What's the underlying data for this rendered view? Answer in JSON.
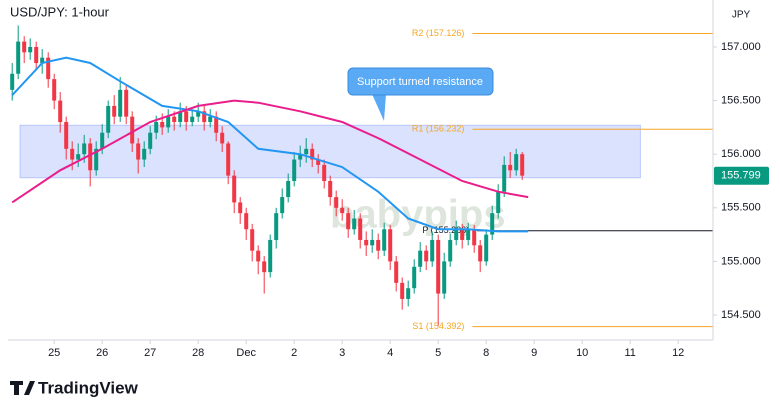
{
  "chart_data": {
    "type": "candlestick",
    "title": "USD/JPY: 1-hour",
    "currency": "JPY",
    "watermark": "babypips",
    "annotation": "Support turned resistance",
    "up_color": "#089981",
    "down_color": "#f23645",
    "x": [
      -7,
      -6,
      -5,
      -4,
      -3,
      -2,
      -1,
      0,
      1,
      2,
      3,
      4,
      5,
      6,
      7,
      8,
      9,
      10,
      11,
      12,
      13,
      14,
      15,
      16,
      17,
      18,
      19,
      20,
      21,
      22,
      23,
      24,
      25,
      26,
      27,
      28,
      29,
      30,
      31,
      32,
      33,
      34,
      35,
      36,
      37,
      38,
      39,
      40,
      41,
      42,
      43,
      44,
      45,
      46,
      47,
      48,
      49,
      50,
      51,
      52,
      53,
      54,
      55,
      56,
      57,
      58,
      59,
      60,
      61,
      62,
      63,
      64,
      65,
      66,
      67,
      68,
      69,
      70,
      71,
      72,
      73,
      74,
      75,
      76,
      77,
      78
    ],
    "open": [
      156.6,
      156.75,
      157.05,
      156.95,
      157.0,
      156.85,
      156.9,
      156.7,
      156.5,
      156.3,
      156.05,
      155.95,
      156.0,
      156.1,
      155.85,
      156.05,
      156.2,
      156.45,
      156.35,
      156.6,
      156.35,
      156.1,
      155.95,
      156.05,
      156.2,
      156.3,
      156.25,
      156.35,
      156.3,
      156.4,
      156.3,
      156.35,
      156.4,
      156.3,
      156.35,
      156.2,
      156.1,
      155.8,
      155.55,
      155.45,
      155.3,
      155.1,
      155.0,
      154.9,
      155.2,
      155.45,
      155.6,
      155.75,
      155.95,
      156.0,
      156.05,
      155.95,
      155.9,
      155.75,
      155.6,
      155.5,
      155.45,
      155.3,
      155.4,
      155.2,
      155.15,
      155.2,
      155.1,
      155.3,
      155.0,
      154.8,
      154.65,
      154.75,
      154.95,
      155.1,
      155.0,
      155.2,
      154.7,
      155.0,
      155.2,
      155.3,
      155.2,
      155.3,
      155.15,
      155.0,
      155.25,
      155.45,
      155.65,
      155.9,
      155.85,
      156.0
    ],
    "high": [
      156.85,
      157.2,
      157.1,
      157.08,
      157.05,
      156.98,
      156.95,
      156.75,
      156.58,
      156.35,
      156.12,
      156.1,
      156.18,
      156.15,
      156.12,
      156.28,
      156.5,
      156.55,
      156.72,
      156.65,
      156.4,
      156.15,
      156.12,
      156.26,
      156.36,
      156.38,
      156.42,
      156.4,
      156.48,
      156.45,
      156.42,
      156.48,
      156.45,
      156.42,
      156.4,
      156.26,
      156.12,
      155.85,
      155.6,
      155.5,
      155.35,
      155.15,
      155.05,
      155.25,
      155.5,
      155.68,
      155.82,
      156.02,
      156.08,
      156.15,
      156.1,
      156.0,
      155.95,
      155.8,
      155.66,
      155.58,
      155.5,
      155.48,
      155.45,
      155.28,
      155.3,
      155.26,
      155.36,
      155.34,
      155.05,
      154.85,
      154.82,
      155.02,
      155.18,
      155.15,
      155.28,
      155.25,
      155.08,
      155.26,
      155.38,
      155.35,
      155.36,
      155.34,
      155.2,
      155.3,
      155.52,
      155.72,
      155.98,
      156.02,
      156.05,
      156.02
    ],
    "low": [
      156.5,
      156.7,
      156.85,
      156.88,
      156.78,
      156.75,
      156.62,
      156.42,
      156.2,
      155.95,
      155.85,
      155.88,
      155.92,
      155.7,
      155.8,
      156.0,
      156.15,
      156.28,
      156.3,
      156.28,
      156.02,
      155.82,
      155.88,
      156.0,
      156.14,
      156.18,
      156.2,
      156.22,
      156.25,
      156.22,
      156.26,
      156.3,
      156.22,
      156.25,
      156.12,
      156.02,
      155.72,
      155.45,
      155.35,
      155.2,
      155.0,
      154.88,
      154.7,
      154.85,
      155.12,
      155.4,
      155.55,
      155.7,
      155.88,
      155.92,
      155.88,
      155.82,
      155.68,
      155.52,
      155.42,
      155.38,
      155.22,
      155.25,
      155.12,
      155.05,
      155.08,
      155.02,
      155.05,
      154.92,
      154.72,
      154.55,
      154.58,
      154.7,
      154.9,
      154.92,
      154.95,
      154.4,
      154.65,
      154.95,
      155.15,
      155.12,
      155.15,
      155.08,
      154.9,
      154.96,
      155.2,
      155.4,
      155.6,
      155.78,
      155.8,
      155.76
    ],
    "close": [
      156.75,
      157.05,
      156.95,
      157.0,
      156.85,
      156.9,
      156.7,
      156.5,
      156.3,
      156.05,
      155.95,
      156.0,
      156.1,
      155.85,
      156.05,
      156.2,
      156.45,
      156.35,
      156.6,
      156.35,
      156.1,
      155.95,
      156.05,
      156.2,
      156.3,
      156.25,
      156.35,
      156.3,
      156.4,
      156.3,
      156.35,
      156.4,
      156.3,
      156.35,
      156.2,
      156.1,
      155.8,
      155.55,
      155.45,
      155.3,
      155.1,
      155.0,
      154.9,
      155.2,
      155.45,
      155.6,
      155.75,
      155.95,
      156.0,
      156.05,
      155.95,
      155.9,
      155.75,
      155.6,
      155.5,
      155.45,
      155.3,
      155.4,
      155.2,
      155.15,
      155.2,
      155.1,
      155.3,
      155.0,
      154.8,
      154.65,
      154.75,
      154.95,
      155.1,
      155.0,
      155.2,
      154.7,
      155.0,
      155.2,
      155.3,
      155.2,
      155.3,
      155.15,
      155.0,
      155.25,
      155.45,
      155.65,
      155.9,
      155.85,
      156.0,
      155.8
    ],
    "series": [
      {
        "color": "#2196f3",
        "x": [
          -7,
          -2,
          2,
          6,
          11,
          18,
          24,
          29,
          34,
          41,
          48,
          54,
          59,
          64,
          69,
          74,
          79
        ],
        "values": [
          156.55,
          156.85,
          156.9,
          156.85,
          156.68,
          156.45,
          156.4,
          156.3,
          156.05,
          156.0,
          155.88,
          155.65,
          155.4,
          155.3,
          155.3,
          155.28,
          155.28
        ]
      },
      {
        "color": "#e91e8c",
        "x": [
          -7,
          1,
          8,
          16,
          24,
          30,
          34,
          41,
          48,
          54,
          61,
          68,
          74,
          79
        ],
        "values": [
          155.55,
          155.85,
          156.05,
          156.3,
          156.45,
          156.5,
          156.48,
          156.4,
          156.3,
          156.15,
          155.95,
          155.75,
          155.65,
          155.6
        ]
      }
    ],
    "zone": {
      "xlim": [
        -5.7,
        97.7
      ],
      "ylim": [
        155.78,
        156.27
      ],
      "color": "#5b7cf5"
    },
    "levels": [
      {
        "label": "R2 (157.126)",
        "value": 157.126,
        "color": "#f5a623",
        "start": 69.7
      },
      {
        "label": "R1 (156.232)",
        "value": 156.232,
        "color": "#f5a623",
        "start": 69.7
      },
      {
        "label": "P (155.286)",
        "value": 155.286,
        "color": "#131722",
        "start": 70.5
      },
      {
        "label": "S1 (154.392)",
        "value": 154.392,
        "color": "#f5a623",
        "start": 69.7
      }
    ],
    "last_price": {
      "value": 155.799,
      "label": "155.799"
    },
    "xlim": [
      -7.7,
      109.8
    ],
    "xticks": [
      {
        "value": 0,
        "label": "25"
      },
      {
        "value": 8,
        "label": "26"
      },
      {
        "value": 16,
        "label": "27"
      },
      {
        "value": 24,
        "label": "28"
      },
      {
        "value": 32,
        "label": "Dec"
      },
      {
        "value": 40,
        "label": "2"
      },
      {
        "value": 48,
        "label": "3"
      },
      {
        "value": 56,
        "label": "4"
      },
      {
        "value": 64,
        "label": "5"
      },
      {
        "value": 72,
        "label": "8"
      },
      {
        "value": 80,
        "label": "9"
      },
      {
        "value": 88,
        "label": "10"
      },
      {
        "value": 96,
        "label": "11"
      },
      {
        "value": 104,
        "label": "12"
      }
    ],
    "ylim": [
      154.267,
      157.438
    ],
    "yticks": [
      {
        "value": 157,
        "label": "157.000"
      },
      {
        "value": 156.5,
        "label": "156.500"
      },
      {
        "value": 156,
        "label": "156.000"
      },
      {
        "value": 155.5,
        "label": "155.500"
      },
      {
        "value": 155,
        "label": "155.000"
      },
      {
        "value": 154.5,
        "label": "154.500"
      }
    ]
  },
  "brand": "TradingView"
}
